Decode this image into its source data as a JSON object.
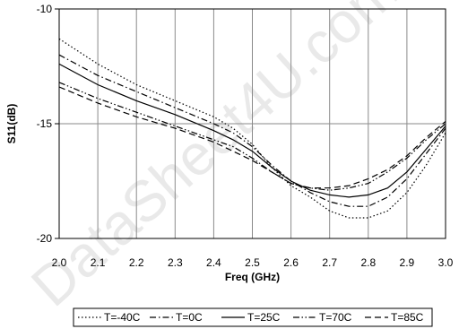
{
  "watermark": "DataSheet4U.com",
  "chart_data": {
    "type": "line",
    "xlabel": "Freq (GHz)",
    "ylabel": "S11(dB)",
    "xlim": [
      2.0,
      3.0
    ],
    "ylim": [
      -20,
      -10
    ],
    "xticks": [
      "2.0",
      "2.1",
      "2.2",
      "2.3",
      "2.4",
      "2.5",
      "2.6",
      "2.7",
      "2.8",
      "2.9",
      "3.0"
    ],
    "yticks": [
      "-10",
      "-15",
      "-20"
    ],
    "grid": true,
    "legend_position": "bottom",
    "series": [
      {
        "name": "T=-40C",
        "dash": "dotted",
        "x": [
          2.0,
          2.1,
          2.2,
          2.3,
          2.4,
          2.45,
          2.5,
          2.55,
          2.6,
          2.65,
          2.7,
          2.75,
          2.8,
          2.85,
          2.9,
          2.95,
          3.0
        ],
        "y": [
          -11.3,
          -12.4,
          -13.3,
          -14.0,
          -14.7,
          -15.2,
          -15.9,
          -16.9,
          -17.7,
          -18.2,
          -18.8,
          -19.1,
          -19.1,
          -18.8,
          -18.0,
          -16.8,
          -15.4
        ]
      },
      {
        "name": "T=0C",
        "dash": "dashdot",
        "x": [
          2.0,
          2.1,
          2.2,
          2.3,
          2.4,
          2.45,
          2.5,
          2.55,
          2.6,
          2.65,
          2.7,
          2.75,
          2.8,
          2.85,
          2.9,
          2.95,
          3.0
        ],
        "y": [
          -12.0,
          -12.9,
          -13.6,
          -14.3,
          -15.0,
          -15.4,
          -16.0,
          -16.8,
          -17.5,
          -18.0,
          -18.4,
          -18.6,
          -18.6,
          -18.2,
          -17.4,
          -16.3,
          -15.2
        ]
      },
      {
        "name": "T=25C",
        "dash": "solid",
        "x": [
          2.0,
          2.1,
          2.2,
          2.3,
          2.4,
          2.45,
          2.5,
          2.55,
          2.6,
          2.65,
          2.7,
          2.75,
          2.8,
          2.85,
          2.9,
          2.95,
          3.0
        ],
        "y": [
          -12.4,
          -13.3,
          -14.0,
          -14.6,
          -15.3,
          -15.7,
          -16.2,
          -16.9,
          -17.5,
          -17.9,
          -18.1,
          -18.2,
          -18.1,
          -17.8,
          -17.1,
          -16.1,
          -15.1
        ]
      },
      {
        "name": "T=70C",
        "dash": "dashdotdot",
        "x": [
          2.0,
          2.1,
          2.2,
          2.3,
          2.4,
          2.45,
          2.5,
          2.55,
          2.6,
          2.65,
          2.7,
          2.75,
          2.8,
          2.85,
          2.9,
          2.95,
          3.0
        ],
        "y": [
          -13.2,
          -13.9,
          -14.5,
          -15.1,
          -15.7,
          -16.0,
          -16.5,
          -17.1,
          -17.6,
          -17.8,
          -17.9,
          -17.8,
          -17.6,
          -17.1,
          -16.5,
          -15.7,
          -15.0
        ]
      },
      {
        "name": "T=85C",
        "dash": "dashed",
        "x": [
          2.0,
          2.1,
          2.2,
          2.3,
          2.4,
          2.45,
          2.5,
          2.55,
          2.6,
          2.65,
          2.7,
          2.75,
          2.8,
          2.85,
          2.9,
          2.95,
          3.0
        ],
        "y": [
          -13.4,
          -14.1,
          -14.7,
          -15.2,
          -15.8,
          -16.2,
          -16.6,
          -17.1,
          -17.6,
          -17.8,
          -17.8,
          -17.7,
          -17.4,
          -17.0,
          -16.4,
          -15.6,
          -14.9
        ]
      }
    ]
  }
}
